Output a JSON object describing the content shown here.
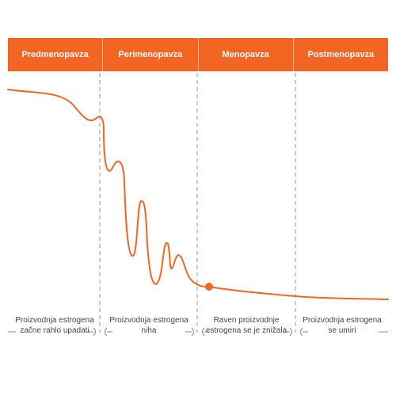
{
  "phases": [
    {
      "label": "Predmenopavza"
    },
    {
      "label": "Perimenopavza"
    },
    {
      "label": "Menopavza"
    },
    {
      "label": "Postmenopavza"
    }
  ],
  "captions": [
    {
      "text": "Proizvodnja estrogena začne rahlo upadati"
    },
    {
      "text": "Proizvodnja estrogena niha"
    },
    {
      "text": "Raven proizvodnje estrogena se je znižala"
    },
    {
      "text": "Proizvodnja estrogena se umiri"
    }
  ],
  "colors": {
    "accent": "#f26522",
    "divider": "#999999",
    "caption_text": "#444444",
    "header_text": "#ffffff"
  }
}
